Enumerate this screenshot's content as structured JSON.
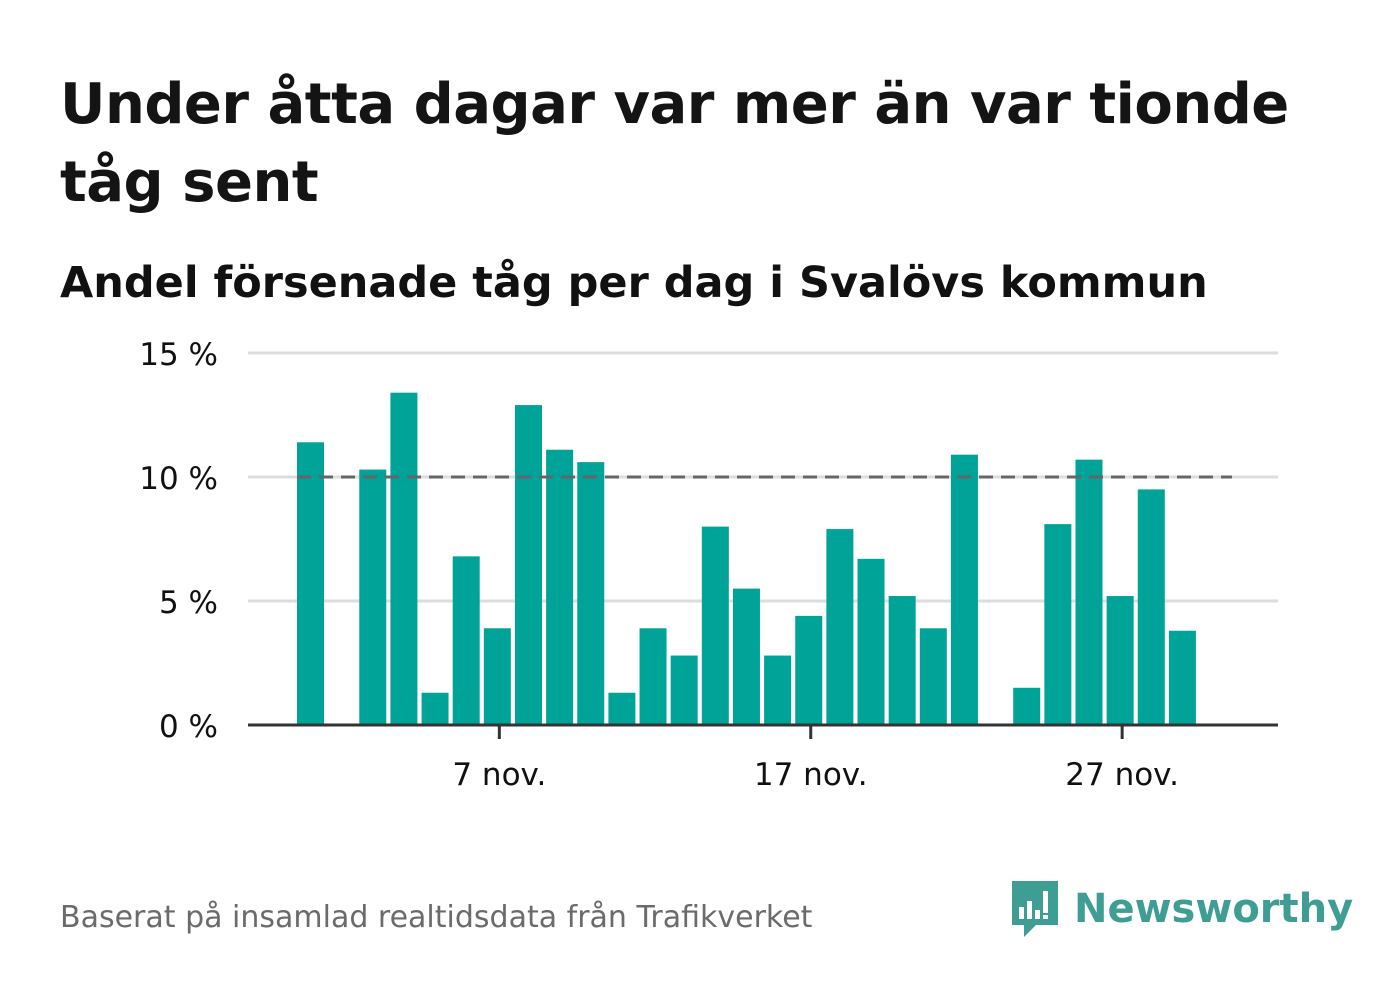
{
  "title": "Under åtta dagar var mer än var tionde tåg sent",
  "subtitle": "Andel försenade tåg per dag i Svalövs kommun",
  "footer": "Baserat på insamlad realtidsdata från Trafikverket",
  "logo": {
    "text": "Newsworthy",
    "icon": "bar-chart-speech-bubble-icon",
    "color": "#3f9e93"
  },
  "colors": {
    "bar": "#00a398",
    "grid": "#dddddd",
    "axis": "#333333",
    "threshold": "#666666",
    "text": "#111111"
  },
  "chart_data": {
    "type": "bar",
    "title": "Under åtta dagar var mer än var tionde tåg sent",
    "subtitle": "Andel försenade tåg per dag i Svalövs kommun",
    "x_start_day": 1,
    "x_end_day": 30,
    "x_month": "nov.",
    "x": [
      1,
      2,
      3,
      4,
      5,
      6,
      7,
      8,
      9,
      10,
      11,
      12,
      13,
      14,
      15,
      16,
      17,
      18,
      19,
      20,
      21,
      22,
      23,
      24,
      25,
      26,
      27,
      28,
      29,
      30
    ],
    "values": [
      11.4,
      null,
      10.3,
      13.4,
      1.3,
      6.8,
      3.9,
      12.9,
      11.1,
      10.6,
      1.3,
      3.9,
      2.8,
      8.0,
      5.5,
      2.8,
      4.4,
      7.9,
      6.7,
      5.2,
      3.9,
      10.9,
      null,
      1.5,
      8.1,
      10.7,
      5.2,
      9.5,
      3.8,
      null
    ],
    "ylim": [
      0,
      15
    ],
    "yticks": [
      0,
      5,
      10,
      15
    ],
    "ytick_labels": [
      "0 %",
      "5 %",
      "10 %",
      "15 %"
    ],
    "xticks": [
      7,
      17,
      27
    ],
    "xtick_labels": [
      "7 nov.",
      "17 nov.",
      "27 nov."
    ],
    "threshold": 10,
    "grid": true,
    "legend": "none"
  }
}
